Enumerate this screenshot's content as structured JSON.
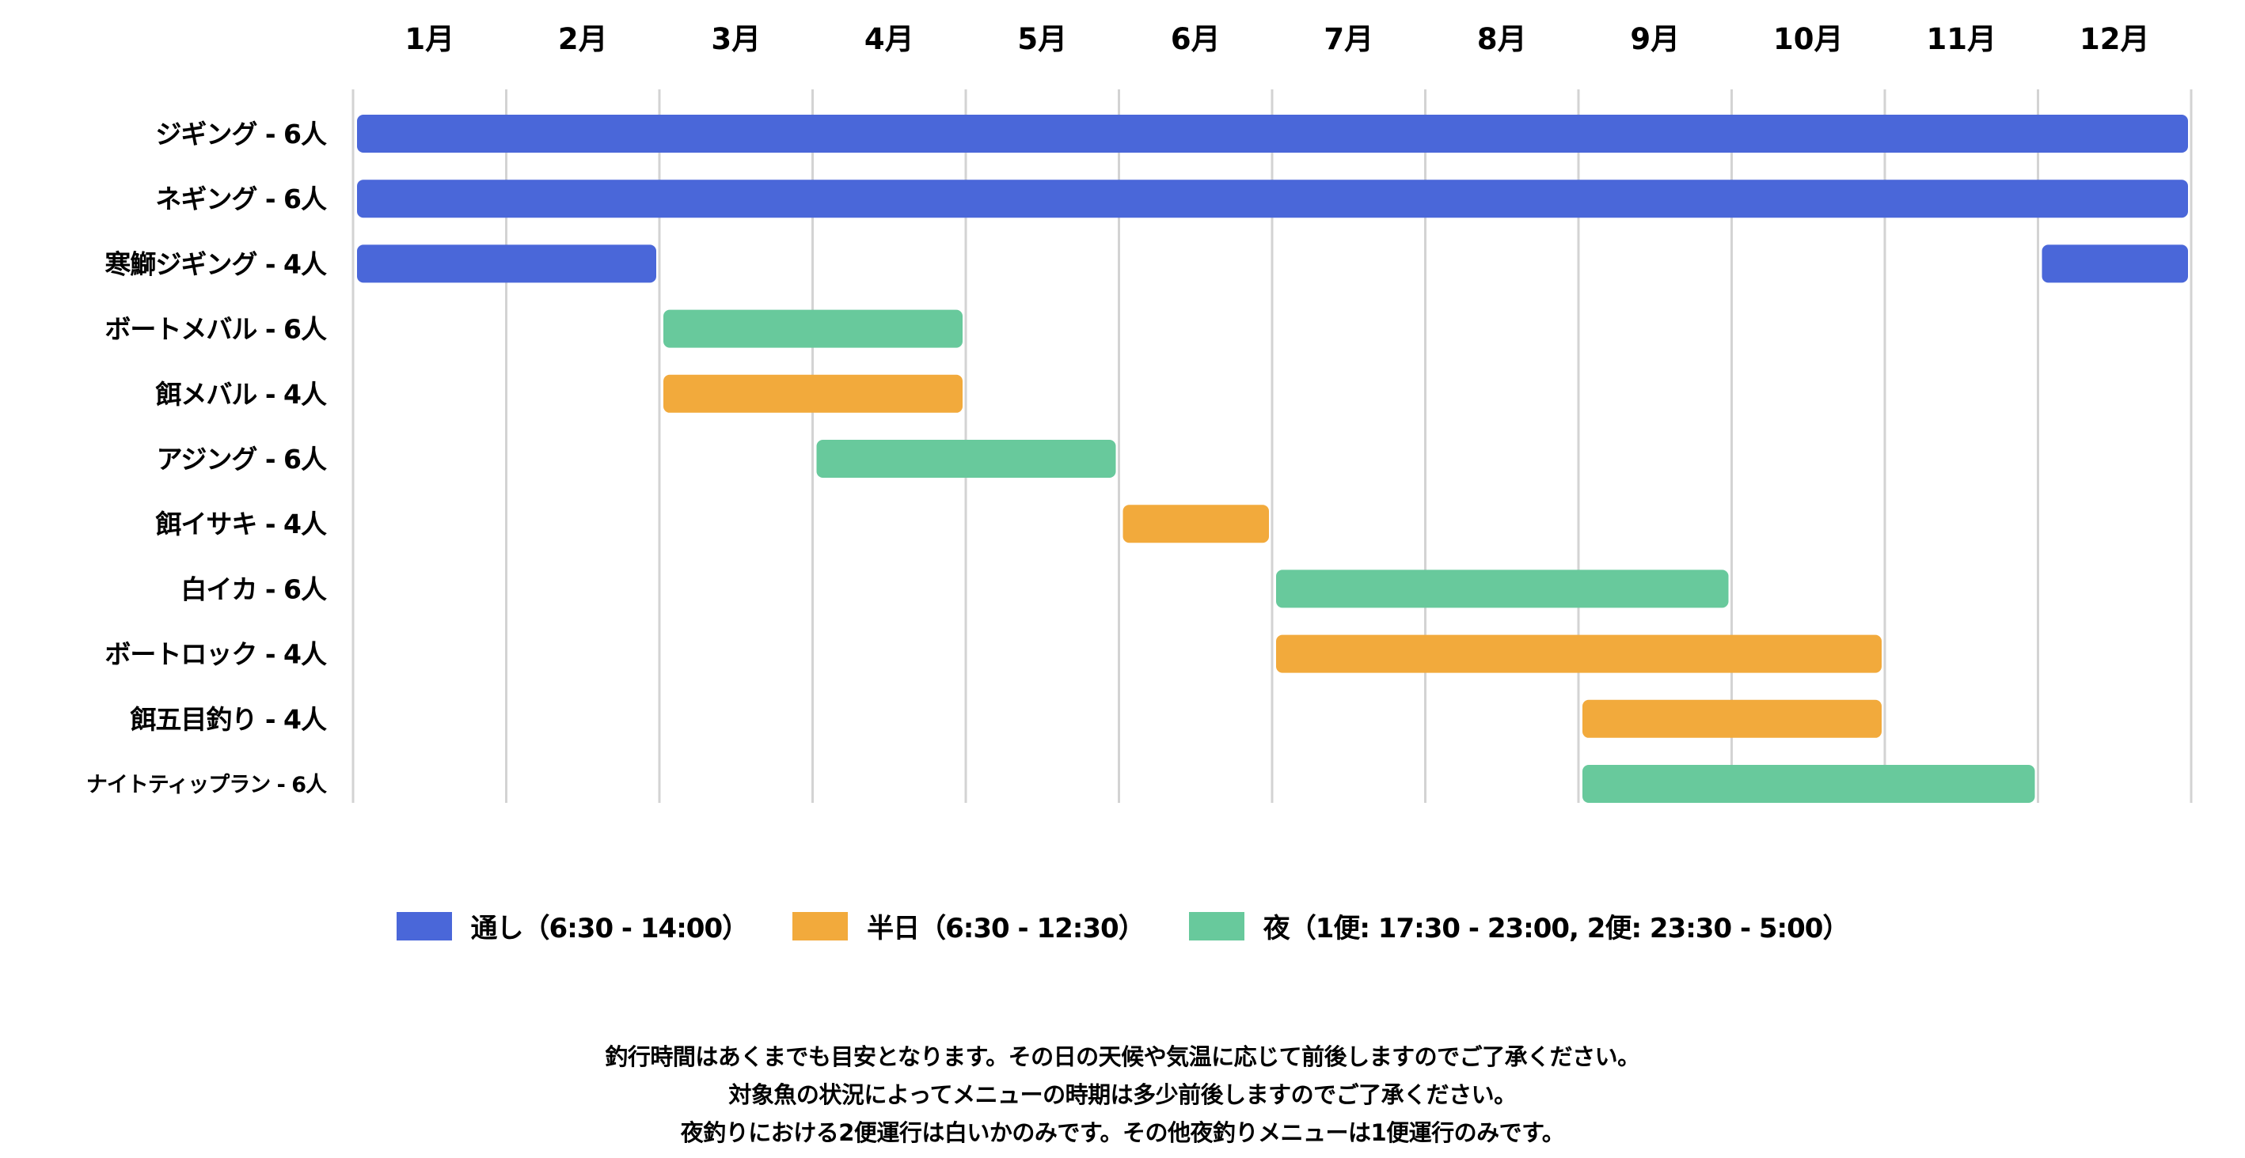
{
  "chart_data": {
    "type": "gantt",
    "x_categories": [
      "1月",
      "2月",
      "3月",
      "4月",
      "5月",
      "6月",
      "7月",
      "8月",
      "9月",
      "10月",
      "11月",
      "12月"
    ],
    "grid": true,
    "legend_position": "bottom",
    "series_types": [
      {
        "key": "full",
        "name": "通し（6:30 - 14:00）",
        "color": "#4a67d9"
      },
      {
        "key": "half",
        "name": "半日（6:30 - 12:30）",
        "color": "#f2aa3c"
      },
      {
        "key": "night",
        "name": "夜（1便: 17:30 - 23:00, 2便: 23:30 - 5:00）",
        "color": "#68c99c"
      }
    ],
    "rows": [
      {
        "label": "ジギング - 6人",
        "segments": [
          {
            "start": 1,
            "end": 12,
            "type": "full"
          }
        ]
      },
      {
        "label": "ネギング - 6人",
        "segments": [
          {
            "start": 1,
            "end": 12,
            "type": "full"
          }
        ]
      },
      {
        "label": "寒鰤ジギング - 4人",
        "segments": [
          {
            "start": 1,
            "end": 2,
            "type": "full"
          },
          {
            "start": 12,
            "end": 12,
            "type": "full"
          }
        ]
      },
      {
        "label": "ボートメバル - 6人",
        "segments": [
          {
            "start": 3,
            "end": 4,
            "type": "night"
          }
        ]
      },
      {
        "label": "餌メバル - 4人",
        "segments": [
          {
            "start": 3,
            "end": 4,
            "type": "half"
          }
        ]
      },
      {
        "label": "アジング - 6人",
        "segments": [
          {
            "start": 4,
            "end": 5,
            "type": "night"
          }
        ]
      },
      {
        "label": "餌イサキ - 4人",
        "segments": [
          {
            "start": 6,
            "end": 6,
            "type": "half"
          }
        ]
      },
      {
        "label": "白イカ - 6人",
        "segments": [
          {
            "start": 7,
            "end": 9,
            "type": "night"
          }
        ]
      },
      {
        "label": "ボートロック - 4人",
        "segments": [
          {
            "start": 7,
            "end": 10,
            "type": "half"
          }
        ]
      },
      {
        "label": "餌五目釣り - 4人",
        "segments": [
          {
            "start": 9,
            "end": 10,
            "type": "half"
          }
        ]
      },
      {
        "label": "ナイトティップラン - 6人",
        "segments": [
          {
            "start": 9,
            "end": 11,
            "type": "night"
          }
        ],
        "small": true
      }
    ]
  },
  "notes": [
    "釣行時間はあくまでも目安となります。その日の天候や気温に応じて前後しますのでご了承ください。",
    "対象魚の状況によってメニューの時期は多少前後しますのでご了承ください。",
    "夜釣りにおける2便運行は白いかのみです。その他夜釣りメニューは1便運行のみです。"
  ]
}
